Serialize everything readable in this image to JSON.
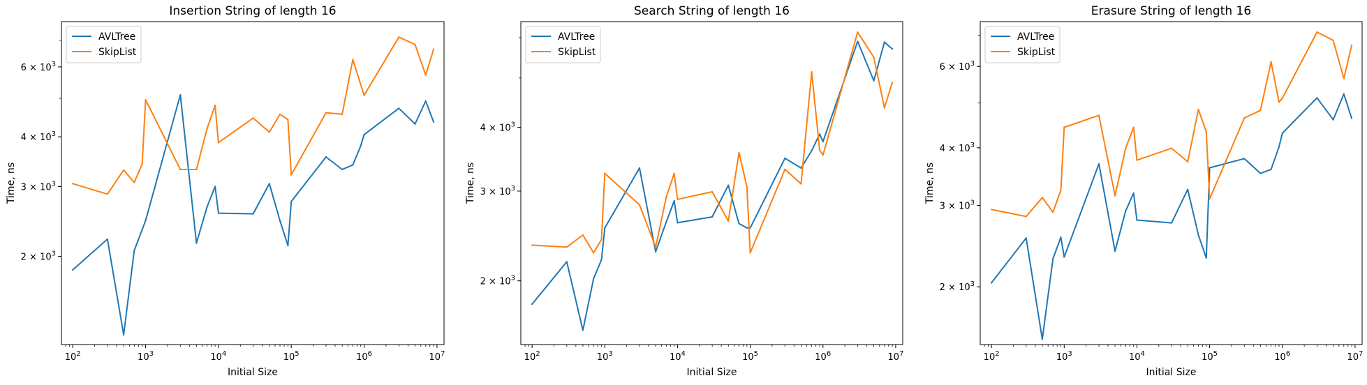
{
  "colors": {
    "AVLTree": "#1f77b4",
    "SkipList": "#ff7f0e",
    "axis": "#000000",
    "background": "#ffffff"
  },
  "chart_data": [
    {
      "type": "line",
      "title": "Insertion String of length 16",
      "xlabel": "Initial Size",
      "ylabel": "Time, ns",
      "xscale": "log",
      "yscale": "log",
      "xlim": [
        70,
        12500000
      ],
      "ylim": [
        1200,
        7800
      ],
      "grid": false,
      "legend": "upper-left",
      "xticks": [
        {
          "value": 100,
          "base": "10",
          "exp": "2"
        },
        {
          "value": 1000,
          "base": "10",
          "exp": "3"
        },
        {
          "value": 10000,
          "base": "10",
          "exp": "4"
        },
        {
          "value": 100000,
          "base": "10",
          "exp": "5"
        },
        {
          "value": 1000000,
          "base": "10",
          "exp": "6"
        },
        {
          "value": 10000000,
          "base": "10",
          "exp": "7"
        }
      ],
      "yticks": [
        {
          "value": 2000,
          "mant": "2",
          "base": "10",
          "exp": "3"
        },
        {
          "value": 3000,
          "mant": "3",
          "base": "10",
          "exp": "3"
        },
        {
          "value": 4000,
          "mant": "4",
          "base": "10",
          "exp": "3"
        },
        {
          "value": 6000,
          "mant": "6",
          "base": "10",
          "exp": "3"
        }
      ],
      "series": [
        {
          "name": "AVLTree",
          "color": "#1f77b4",
          "x": [
            100,
            300,
            500,
            700,
            1000,
            3000,
            5000,
            7000,
            9000,
            10000,
            30000,
            50000,
            70000,
            90000,
            100000,
            300000,
            500000,
            700000,
            900000,
            1000000,
            3000000,
            5000000,
            7000000,
            9000000
          ],
          "y": [
            1850,
            2210,
            1270,
            2070,
            2460,
            5100,
            2160,
            2670,
            3000,
            2570,
            2560,
            3050,
            2460,
            2130,
            2750,
            3560,
            3310,
            3400,
            3800,
            4050,
            4720,
            4310,
            4920,
            4360
          ]
        },
        {
          "name": "SkipList",
          "color": "#ff7f0e",
          "x": [
            100,
            300,
            500,
            700,
            900,
            1000,
            3000,
            5000,
            7000,
            9000,
            10000,
            30000,
            50000,
            70000,
            90000,
            100000,
            300000,
            500000,
            700000,
            1000000,
            3000000,
            5000000,
            7000000,
            9000000
          ],
          "y": [
            3050,
            2870,
            3300,
            3070,
            3420,
            4960,
            3310,
            3310,
            4200,
            4800,
            3870,
            4460,
            4110,
            4560,
            4420,
            3210,
            4600,
            4560,
            6260,
            5090,
            7130,
            6830,
            5720,
            6650
          ]
        }
      ]
    },
    {
      "type": "line",
      "title": "Search String of length 16",
      "xlabel": "Initial Size",
      "ylabel": "Time, ns",
      "xscale": "log",
      "yscale": "log",
      "xlim": [
        70,
        12500000
      ],
      "ylim": [
        1500,
        6450
      ],
      "grid": false,
      "legend": "upper-left",
      "xticks": [
        {
          "value": 100,
          "base": "10",
          "exp": "2"
        },
        {
          "value": 1000,
          "base": "10",
          "exp": "3"
        },
        {
          "value": 10000,
          "base": "10",
          "exp": "4"
        },
        {
          "value": 100000,
          "base": "10",
          "exp": "5"
        },
        {
          "value": 1000000,
          "base": "10",
          "exp": "6"
        },
        {
          "value": 10000000,
          "base": "10",
          "exp": "7"
        }
      ],
      "yticks": [
        {
          "value": 2000,
          "mant": "2",
          "base": "10",
          "exp": "3"
        },
        {
          "value": 3000,
          "mant": "3",
          "base": "10",
          "exp": "3"
        },
        {
          "value": 4000,
          "mant": "4",
          "base": "10",
          "exp": "3"
        }
      ],
      "series": [
        {
          "name": "AVLTree",
          "color": "#1f77b4",
          "x": [
            100,
            300,
            500,
            700,
            900,
            1000,
            3000,
            5000,
            7000,
            9000,
            10000,
            30000,
            50000,
            70000,
            90000,
            100000,
            300000,
            500000,
            700000,
            900000,
            1000000,
            3000000,
            5000000,
            7000000,
            9000000
          ],
          "y": [
            1800,
            2180,
            1600,
            2020,
            2200,
            2540,
            3330,
            2280,
            2610,
            2870,
            2600,
            2670,
            3080,
            2590,
            2540,
            2540,
            3480,
            3330,
            3600,
            3880,
            3750,
            5900,
            4940,
            5880,
            5700
          ]
        },
        {
          "name": "SkipList",
          "color": "#ff7f0e",
          "x": [
            100,
            300,
            500,
            700,
            900,
            1000,
            3000,
            5000,
            7000,
            9000,
            10000,
            30000,
            50000,
            70000,
            90000,
            100000,
            300000,
            500000,
            700000,
            900000,
            1000000,
            3000000,
            5000000,
            7000000,
            9000000
          ],
          "y": [
            2350,
            2330,
            2460,
            2270,
            2410,
            3250,
            2820,
            2330,
            2920,
            3250,
            2890,
            2990,
            2620,
            3570,
            3060,
            2270,
            3310,
            3100,
            5140,
            3610,
            3530,
            6150,
            5490,
            4370,
            4900
          ]
        }
      ]
    },
    {
      "type": "line",
      "title": "Erasure String of length 16",
      "xlabel": "Initial Size",
      "ylabel": "Time, ns",
      "xscale": "log",
      "yscale": "log",
      "xlim": [
        70,
        12500000
      ],
      "ylim": [
        1500,
        7500
      ],
      "grid": false,
      "legend": "upper-left",
      "xticks": [
        {
          "value": 100,
          "base": "10",
          "exp": "2"
        },
        {
          "value": 1000,
          "base": "10",
          "exp": "3"
        },
        {
          "value": 10000,
          "base": "10",
          "exp": "4"
        },
        {
          "value": 100000,
          "base": "10",
          "exp": "5"
        },
        {
          "value": 1000000,
          "base": "10",
          "exp": "6"
        },
        {
          "value": 10000000,
          "base": "10",
          "exp": "7"
        }
      ],
      "yticks": [
        {
          "value": 2000,
          "mant": "2",
          "base": "10",
          "exp": "3"
        },
        {
          "value": 3000,
          "mant": "3",
          "base": "10",
          "exp": "3"
        },
        {
          "value": 4000,
          "mant": "4",
          "base": "10",
          "exp": "3"
        },
        {
          "value": 6000,
          "mant": "6",
          "base": "10",
          "exp": "3"
        }
      ],
      "series": [
        {
          "name": "AVLTree",
          "color": "#1f77b4",
          "x": [
            100,
            300,
            500,
            700,
            900,
            1000,
            3000,
            5000,
            7000,
            9000,
            10000,
            30000,
            50000,
            70000,
            90000,
            100000,
            300000,
            500000,
            700000,
            900000,
            1000000,
            3000000,
            5000000,
            7000000,
            9000000
          ],
          "y": [
            2040,
            2550,
            1540,
            2300,
            2560,
            2320,
            3690,
            2390,
            2920,
            3190,
            2790,
            2750,
            3250,
            2590,
            2310,
            3620,
            3790,
            3520,
            3590,
            4020,
            4300,
            5130,
            4600,
            5230,
            4630
          ]
        },
        {
          "name": "SkipList",
          "color": "#ff7f0e",
          "x": [
            100,
            300,
            500,
            700,
            900,
            1000,
            3000,
            5000,
            7000,
            9000,
            10000,
            30000,
            50000,
            70000,
            90000,
            100000,
            300000,
            500000,
            700000,
            900000,
            1000000,
            3000000,
            5000000,
            7000000,
            9000000
          ],
          "y": [
            2940,
            2840,
            3120,
            2900,
            3240,
            4430,
            4700,
            3150,
            3990,
            4430,
            3760,
            3990,
            3730,
            4840,
            4330,
            3100,
            4640,
            4820,
            6140,
            5020,
            5120,
            7120,
            6830,
            5650,
            6670
          ]
        }
      ]
    }
  ]
}
